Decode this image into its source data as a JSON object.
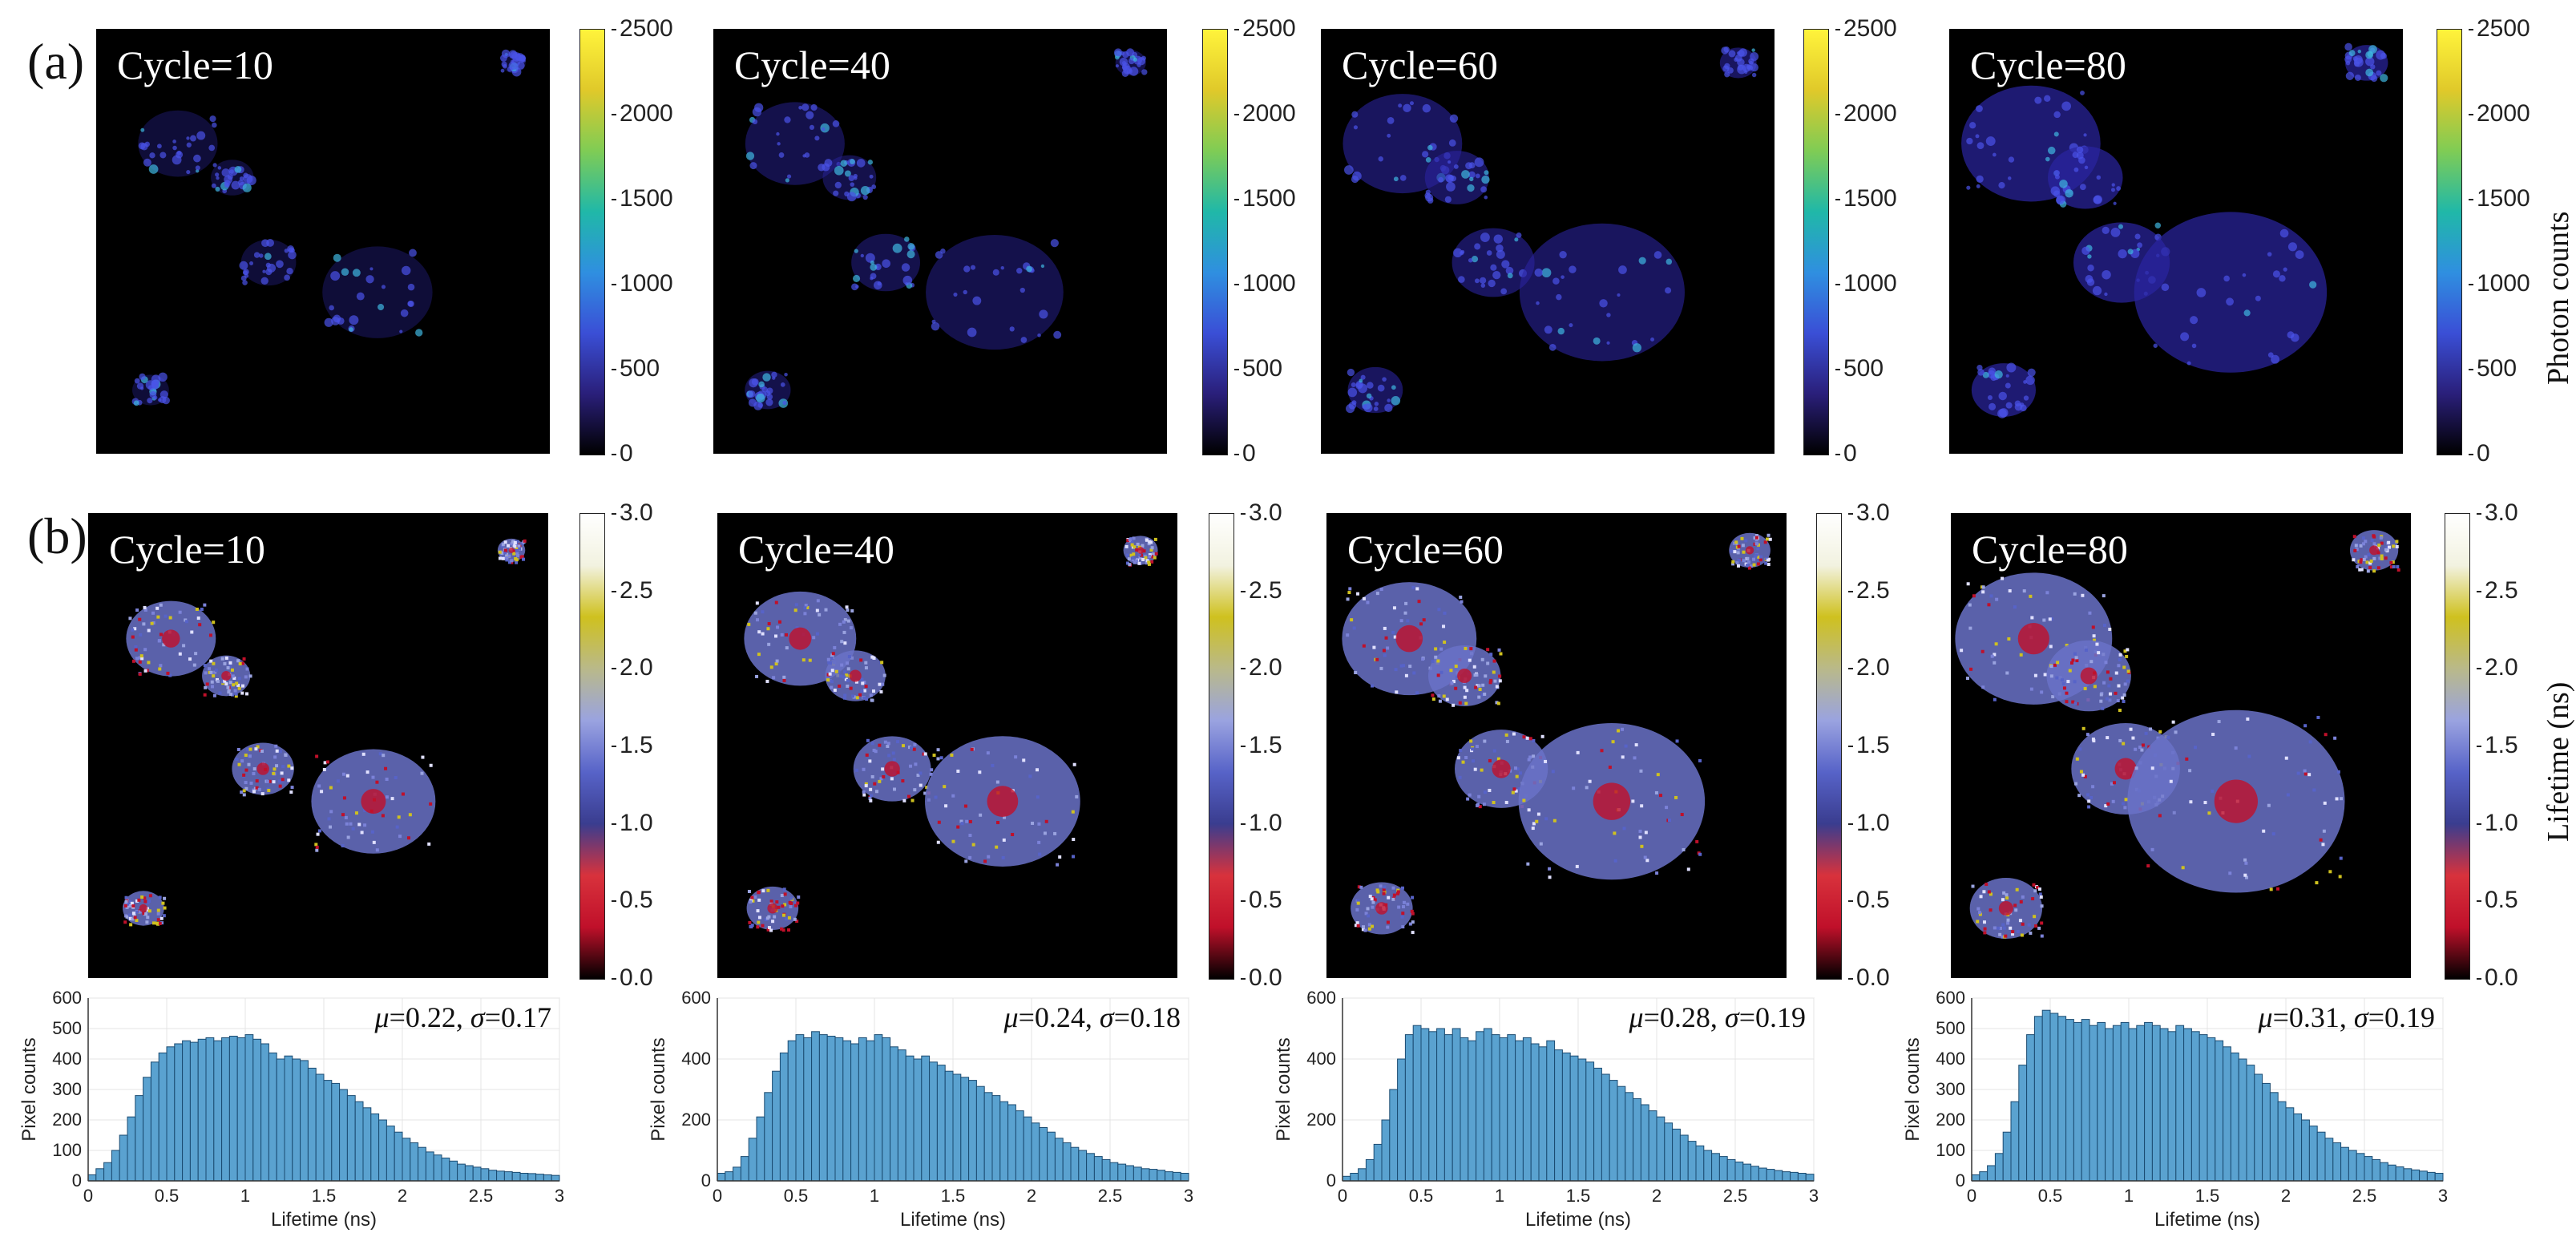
{
  "figure": {
    "panel_a_label": "(a)",
    "panel_b_label": "(b)",
    "photon_colorbar": {
      "title": "Photon counts",
      "ticks": [
        "2500",
        "2000",
        "1500",
        "1000",
        "500",
        "0"
      ],
      "colors": [
        "#000000",
        "#2a1f7a",
        "#3a4fd6",
        "#2f8fe0",
        "#20b8a8",
        "#7fcc55",
        "#e0c92a",
        "#fff33b"
      ]
    },
    "lifetime_colorbar": {
      "title": "Lifetime (ns)",
      "ticks": [
        "3.0",
        "2.5",
        "2.0",
        "1.5",
        "1.0",
        "0.5",
        "0.0"
      ],
      "colors": [
        "#000000",
        "#c0102a",
        "#d8323c",
        "#3a3d8f",
        "#5763c8",
        "#9aa3e0",
        "#b9b98a",
        "#cfc11f",
        "#f2f2e0",
        "#ffffff"
      ]
    },
    "photon_images": [
      {
        "label": "Cycle=10"
      },
      {
        "label": "Cycle=40"
      },
      {
        "label": "Cycle=60"
      },
      {
        "label": "Cycle=80"
      }
    ],
    "lifetime_images": [
      {
        "label": "Cycle=10"
      },
      {
        "label": "Cycle=40"
      },
      {
        "label": "Cycle=60"
      },
      {
        "label": "Cycle=80"
      }
    ]
  },
  "chart_data": [
    {
      "type": "bar",
      "panel": "histogram-cycle-10",
      "xlabel": "Lifetime (ns)",
      "ylabel": "Pixel counts",
      "xlim": [
        0,
        3
      ],
      "ylim": [
        0,
        600
      ],
      "xticks": [
        "0",
        "0.5",
        "1",
        "1.5",
        "2",
        "2.5",
        "3"
      ],
      "yticks": [
        "0",
        "100",
        "200",
        "300",
        "400",
        "500",
        "600"
      ],
      "annotation": {
        "mu": "μ",
        "mu_value": "=0.22, ",
        "sigma": "σ",
        "sigma_value": "=0.17"
      },
      "bin_width": 0.05,
      "values": [
        20,
        40,
        60,
        100,
        150,
        210,
        280,
        340,
        390,
        420,
        440,
        450,
        460,
        455,
        465,
        470,
        460,
        470,
        475,
        470,
        480,
        465,
        450,
        420,
        400,
        410,
        400,
        395,
        370,
        350,
        330,
        320,
        300,
        280,
        260,
        240,
        220,
        200,
        180,
        160,
        140,
        125,
        110,
        95,
        85,
        75,
        65,
        55,
        50,
        45,
        40,
        35,
        32,
        30,
        28,
        25,
        24,
        22,
        20,
        18
      ]
    },
    {
      "type": "bar",
      "panel": "histogram-cycle-40",
      "xlabel": "Lifetime (ns)",
      "ylabel": "Pixel counts",
      "xlim": [
        0,
        3
      ],
      "ylim": [
        0,
        600
      ],
      "xticks": [
        "0",
        "0.5",
        "1",
        "1.5",
        "2",
        "2.5",
        "3"
      ],
      "yticks": [
        "0",
        "200",
        "400",
        "600"
      ],
      "annotation": {
        "mu": "μ",
        "mu_value": "=0.24, ",
        "sigma": "σ",
        "sigma_value": "=0.18"
      },
      "bin_width": 0.05,
      "values": [
        25,
        30,
        45,
        80,
        140,
        210,
        290,
        360,
        420,
        460,
        480,
        470,
        490,
        480,
        475,
        470,
        460,
        450,
        470,
        460,
        480,
        470,
        440,
        430,
        410,
        400,
        410,
        390,
        380,
        360,
        350,
        340,
        330,
        310,
        290,
        280,
        260,
        250,
        230,
        210,
        190,
        175,
        160,
        140,
        125,
        110,
        100,
        90,
        80,
        70,
        60,
        55,
        50,
        45,
        40,
        38,
        35,
        30,
        28,
        25
      ]
    },
    {
      "type": "bar",
      "panel": "histogram-cycle-60",
      "xlabel": "Lifetime (ns)",
      "ylabel": "Pixel counts",
      "xlim": [
        0,
        3
      ],
      "ylim": [
        0,
        600
      ],
      "xticks": [
        "0",
        "0.5",
        "1",
        "1.5",
        "2",
        "2.5",
        "3"
      ],
      "yticks": [
        "0",
        "200",
        "400",
        "600"
      ],
      "annotation": {
        "mu": "μ",
        "mu_value": "=0.28, ",
        "sigma": "σ",
        "sigma_value": "=0.19"
      },
      "bin_width": 0.05,
      "values": [
        15,
        25,
        40,
        70,
        120,
        200,
        300,
        400,
        480,
        510,
        500,
        490,
        500,
        480,
        500,
        470,
        460,
        490,
        500,
        480,
        470,
        480,
        460,
        470,
        450,
        440,
        460,
        430,
        420,
        410,
        400,
        390,
        370,
        350,
        330,
        310,
        290,
        270,
        250,
        230,
        210,
        190,
        170,
        150,
        130,
        115,
        100,
        90,
        80,
        70,
        62,
        55,
        48,
        42,
        38,
        34,
        30,
        28,
        25,
        22
      ]
    },
    {
      "type": "bar",
      "panel": "histogram-cycle-80",
      "xlabel": "Lifetime (ns)",
      "ylabel": "Pixel counts",
      "xlim": [
        0,
        3
      ],
      "ylim": [
        0,
        600
      ],
      "xticks": [
        "0",
        "0.5",
        "1",
        "1.5",
        "2",
        "2.5",
        "3"
      ],
      "yticks": [
        "0",
        "100",
        "200",
        "300",
        "400",
        "500",
        "600"
      ],
      "annotation": {
        "mu": "μ",
        "mu_value": "=0.31, ",
        "sigma": "σ",
        "sigma_value": "=0.19"
      },
      "bin_width": 0.05,
      "values": [
        20,
        30,
        50,
        90,
        160,
        260,
        380,
        480,
        540,
        560,
        550,
        540,
        530,
        520,
        530,
        510,
        520,
        500,
        510,
        520,
        500,
        510,
        520,
        510,
        500,
        490,
        510,
        500,
        490,
        480,
        470,
        460,
        440,
        420,
        400,
        380,
        350,
        320,
        290,
        260,
        240,
        220,
        200,
        180,
        160,
        140,
        125,
        110,
        100,
        90,
        80,
        70,
        60,
        52,
        46,
        40,
        36,
        32,
        28,
        25
      ]
    }
  ]
}
